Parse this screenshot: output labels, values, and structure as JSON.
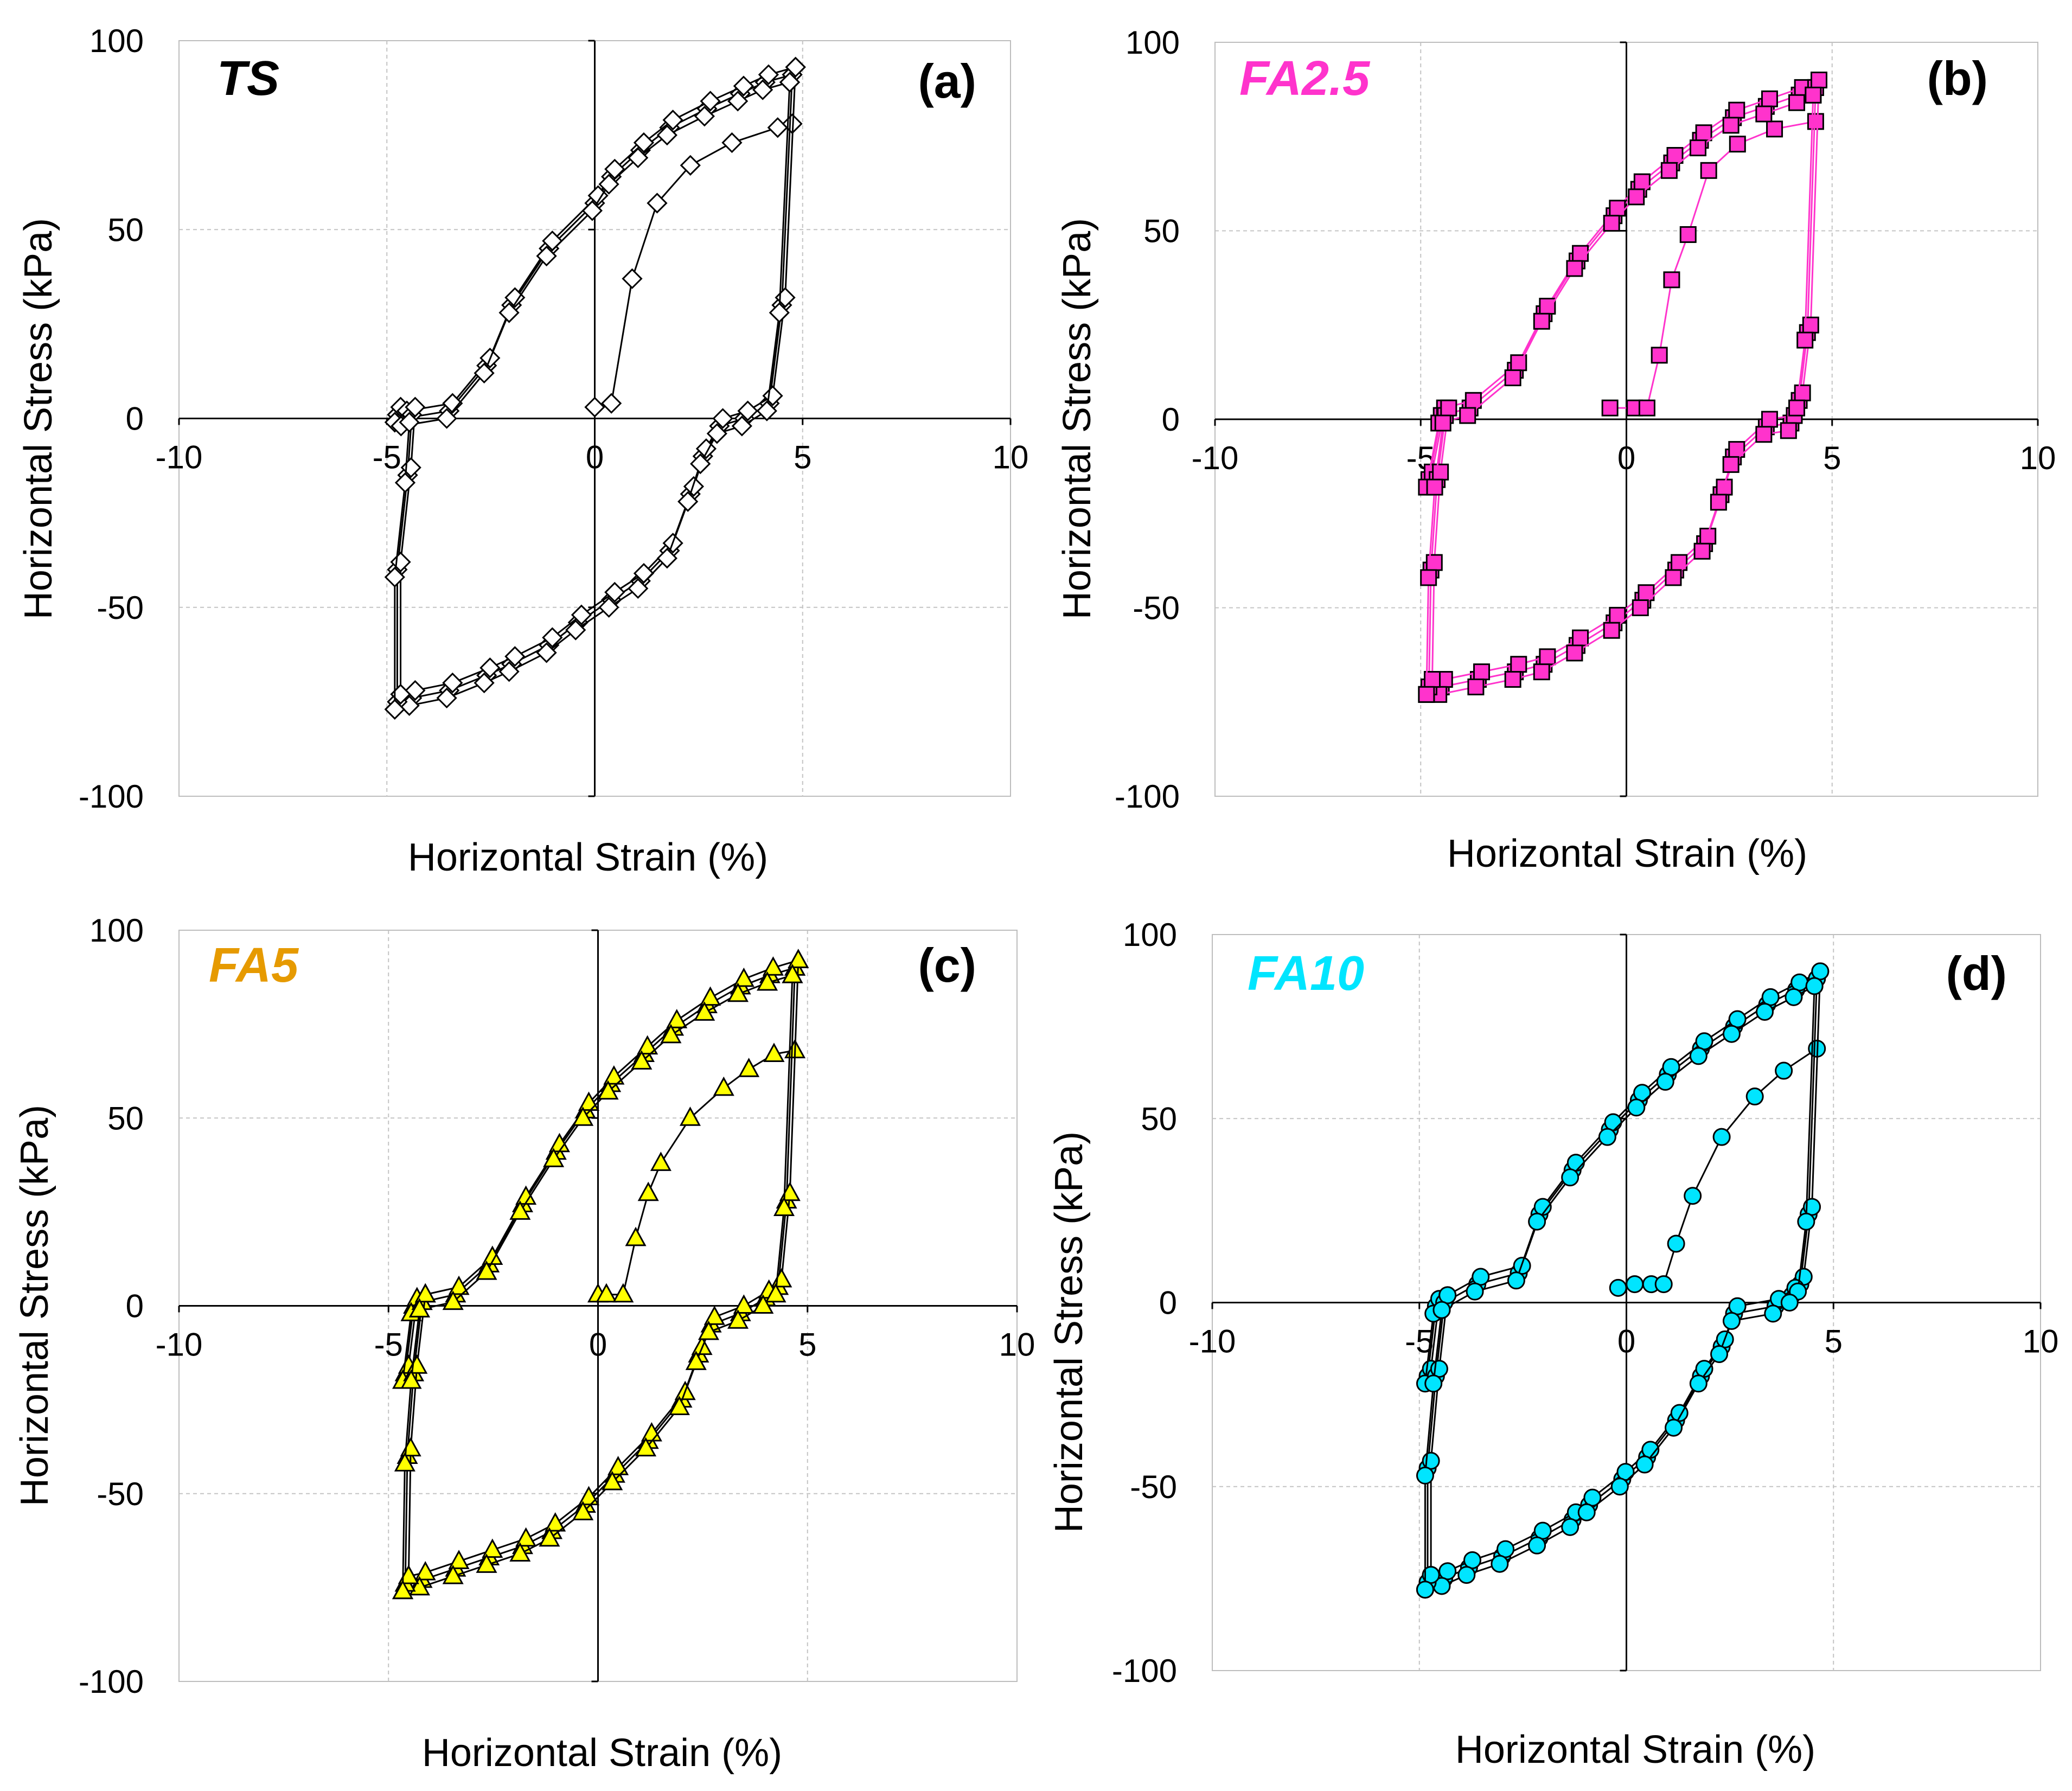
{
  "figure": {
    "panels": [
      {
        "panel_label": "(a)",
        "sample_label": "TS",
        "sample_color": "#000000",
        "xlabel": "Horizontal Strain (%)",
        "ylabel": "Horizontal Stress (kPa)",
        "x_ticks": [
          "-10",
          "-5",
          "0",
          "5",
          "10"
        ],
        "y_ticks": [
          "100",
          "50",
          "0",
          "-50",
          "-100"
        ]
      },
      {
        "panel_label": "(b)",
        "sample_label": "FA2.5",
        "sample_color": "#FF33CC",
        "xlabel": "Horizontal Strain (%)",
        "ylabel": "Horizontal Stress (kPa)",
        "x_ticks": [
          "-10",
          "-5",
          "0",
          "5",
          "10"
        ],
        "y_ticks": [
          "100",
          "50",
          "0",
          "-50",
          "-100"
        ]
      },
      {
        "panel_label": "(c)",
        "sample_label": "FA5",
        "sample_color": "#E69A00",
        "xlabel": "Horizontal Strain (%)",
        "ylabel": "Horizontal Stress (kPa)",
        "x_ticks": [
          "-10",
          "-5",
          "0",
          "5",
          "10"
        ],
        "y_ticks": [
          "100",
          "50",
          "0",
          "-50",
          "-100"
        ]
      },
      {
        "panel_label": "(d)",
        "sample_label": "FA10",
        "sample_color": "#00E5FF",
        "xlabel": "Horizontal Strain (%)",
        "ylabel": "Horizontal Stress (kPa)",
        "x_ticks": [
          "-10",
          "-5",
          "0",
          "5",
          "10"
        ],
        "y_ticks": [
          "100",
          "50",
          "0",
          "-50",
          "-100"
        ]
      }
    ]
  },
  "chart_data": [
    {
      "type": "scatter",
      "panel": "(a)",
      "sample": "TS",
      "xlabel": "Horizontal Strain (%)",
      "ylabel": "Horizontal Stress (kPa)",
      "xlim": [
        -10,
        10
      ],
      "ylim": [
        -100,
        100
      ],
      "grid": true,
      "marker": "diamond",
      "marker_fill": "#ffffff",
      "line_color": "#000000",
      "initial_loading": {
        "x": [
          0,
          0.4,
          0.9,
          1.5,
          2.3,
          3.3,
          4.4,
          4.75
        ],
        "y": [
          3,
          4,
          37,
          57,
          67,
          73,
          77,
          78
        ]
      },
      "upper_branch": {
        "x": [
          -4.75,
          -4.6,
          -3.5,
          -2.6,
          -2.0,
          -1.1,
          0,
          0.4,
          1.1,
          1.8,
          2.7,
          3.5,
          4.1,
          4.75
        ],
        "y": [
          1,
          0,
          2,
          14,
          30,
          45,
          57,
          64,
          71,
          77,
          82,
          86,
          89,
          91
        ]
      },
      "lower_branch": {
        "x": [
          4.75,
          4.5,
          4.2,
          3.6,
          3.0,
          2.6,
          2.3,
          1.8,
          1.1,
          0.4,
          -0.4,
          -1.1,
          -2.0,
          -2.6,
          -3.5,
          -4.4,
          -4.75
        ],
        "y": [
          91,
          30,
          4,
          0,
          -2,
          -10,
          -20,
          -35,
          -43,
          -48,
          -54,
          -60,
          -65,
          -68,
          -72,
          -74,
          -75
        ]
      },
      "return_branch": {
        "x": [
          -4.75,
          -4.75,
          -4.5,
          -4.4
        ],
        "y": [
          -75,
          -40,
          -15,
          1
        ]
      }
    },
    {
      "type": "scatter",
      "panel": "(b)",
      "sample": "FA2.5",
      "xlabel": "Horizontal Strain (%)",
      "ylabel": "Horizontal Stress (kPa)",
      "xlim": [
        -10,
        10
      ],
      "ylim": [
        -100,
        100
      ],
      "grid": true,
      "marker": "square",
      "marker_fill": "#FF33CC",
      "line_color": "#FF33CC",
      "initial_loading": {
        "x": [
          -0.4,
          0.2,
          0.5,
          0.8,
          1.1,
          1.5,
          2.0,
          2.7,
          3.6,
          4.6
        ],
        "y": [
          3,
          3,
          3,
          17,
          37,
          49,
          66,
          73,
          77,
          79
        ]
      },
      "upper_branch": {
        "x": [
          -4.8,
          -4.5,
          -3.8,
          -2.7,
          -2.0,
          -1.2,
          -0.3,
          0.3,
          1.1,
          1.8,
          2.6,
          3.4,
          4.2,
          4.6
        ],
        "y": [
          -16,
          1,
          3,
          13,
          28,
          42,
          54,
          61,
          68,
          74,
          80,
          83,
          86,
          88
        ]
      },
      "lower_branch": {
        "x": [
          4.6,
          4.4,
          4.2,
          4.0,
          3.4,
          2.6,
          2.3,
          1.9,
          1.2,
          0.4,
          -0.3,
          -1.2,
          -2.0,
          -2.7,
          -3.6,
          -4.5,
          -4.8
        ],
        "y": [
          88,
          23,
          5,
          -1,
          -2,
          -10,
          -20,
          -33,
          -40,
          -48,
          -54,
          -60,
          -65,
          -67,
          -69,
          -71,
          -71
        ]
      },
      "return_branch": {
        "x": [
          -4.8,
          -4.75,
          -4.6,
          -4.4
        ],
        "y": [
          -71,
          -40,
          -16,
          1
        ]
      }
    },
    {
      "type": "scatter",
      "panel": "(c)",
      "sample": "FA5",
      "xlabel": "Horizontal Strain (%)",
      "ylabel": "Horizontal Stress (kPa)",
      "xlim": [
        -10,
        10
      ],
      "ylim": [
        -100,
        100
      ],
      "grid": true,
      "marker": "triangle",
      "marker_fill": "#FFFF00",
      "line_color": "#000000",
      "initial_loading": {
        "x": [
          0,
          0.2,
          0.6,
          0.9,
          1.2,
          1.5,
          2.2,
          3.0,
          3.6,
          4.2,
          4.7
        ],
        "y": [
          3,
          3,
          3,
          18,
          30,
          38,
          50,
          58,
          63,
          67,
          68
        ]
      },
      "upper_branch": {
        "x": [
          -4.6,
          -4.4,
          -4.2,
          -3.4,
          -2.6,
          -1.8,
          -1.0,
          -0.3,
          0.3,
          1.1,
          1.8,
          2.6,
          3.4,
          4.1,
          4.7
        ],
        "y": [
          -18,
          0,
          1,
          3,
          11,
          27,
          41,
          52,
          59,
          67,
          74,
          80,
          85,
          88,
          90
        ]
      },
      "lower_branch": {
        "x": [
          4.7,
          4.5,
          4.3,
          4.0,
          3.4,
          2.7,
          2.4,
          2.0,
          1.2,
          0.4,
          -0.3,
          -1.1,
          -1.8,
          -2.6,
          -3.4,
          -4.2,
          -4.6
        ],
        "y": [
          90,
          28,
          5,
          2,
          -2,
          -5,
          -13,
          -25,
          -36,
          -45,
          -53,
          -60,
          -64,
          -67,
          -70,
          -73,
          -74
        ]
      },
      "return_branch": {
        "x": [
          -4.6,
          -4.55,
          -4.4,
          -4.2
        ],
        "y": [
          -74,
          -40,
          -18,
          1
        ]
      }
    },
    {
      "type": "scatter",
      "panel": "(d)",
      "sample": "FA10",
      "xlabel": "Horizontal Strain (%)",
      "ylabel": "Horizontal Stress (kPa)",
      "xlim": [
        -10,
        10
      ],
      "ylim": [
        -100,
        100
      ],
      "grid": true,
      "marker": "circle",
      "marker_fill": "#00E5FF",
      "line_color": "#000000",
      "initial_loading": {
        "x": [
          -0.2,
          0.2,
          0.6,
          0.9,
          1.2,
          1.6,
          2.3,
          3.1,
          3.8,
          4.6
        ],
        "y": [
          4,
          5,
          5,
          5,
          16,
          29,
          45,
          56,
          63,
          69
        ]
      },
      "upper_branch": {
        "x": [
          -4.8,
          -4.6,
          -4.4,
          -3.6,
          -2.6,
          -2.1,
          -1.3,
          -0.4,
          0.3,
          1.0,
          1.8,
          2.6,
          3.4,
          4.1,
          4.6
        ],
        "y": [
          -20,
          -1,
          0,
          5,
          8,
          24,
          36,
          47,
          55,
          62,
          69,
          75,
          81,
          85,
          88
        ]
      },
      "lower_branch": {
        "x": [
          4.6,
          4.4,
          4.2,
          4.0,
          3.6,
          2.6,
          2.3,
          1.8,
          1.2,
          0.5,
          -0.1,
          -0.9,
          -1.3,
          -2.1,
          -3.0,
          -3.8,
          -4.4,
          -4.8
        ],
        "y": [
          88,
          24,
          5,
          2,
          -1,
          -3,
          -12,
          -20,
          -32,
          -42,
          -48,
          -55,
          -59,
          -64,
          -69,
          -72,
          -75,
          -76
        ]
      },
      "return_branch": {
        "x": [
          -4.8,
          -4.8,
          -4.6,
          -4.4
        ],
        "y": [
          -76,
          -45,
          -20,
          0
        ]
      }
    }
  ]
}
